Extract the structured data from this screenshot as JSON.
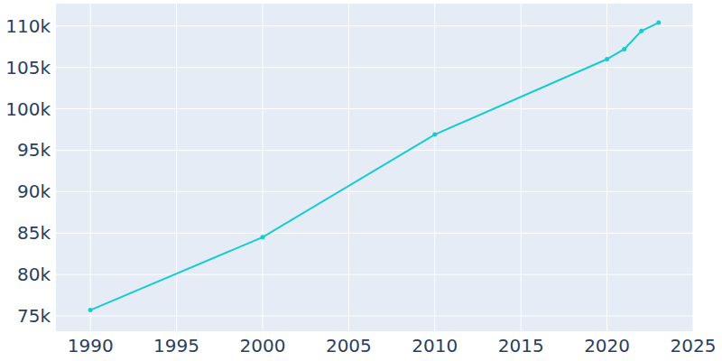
{
  "chart_data": {
    "type": "line",
    "x": [
      1990,
      2000,
      2010,
      2020,
      2021,
      2022,
      2023
    ],
    "values": [
      75700,
      84500,
      96900,
      106000,
      107200,
      109400,
      110400
    ],
    "color": "#17cccc",
    "marker": "circle",
    "xlim": [
      1988,
      2025
    ],
    "xticks": [
      1990,
      1995,
      2000,
      2005,
      2010,
      2015,
      2020,
      2025
    ],
    "ylim": [
      73150,
      112700
    ],
    "yticks": [
      {
        "value": 75000,
        "label": "75k"
      },
      {
        "value": 80000,
        "label": "80k"
      },
      {
        "value": 85000,
        "label": "85k"
      },
      {
        "value": 90000,
        "label": "90k"
      },
      {
        "value": 95000,
        "label": "95k"
      },
      {
        "value": 100000,
        "label": "100k"
      },
      {
        "value": 105000,
        "label": "105k"
      },
      {
        "value": 110000,
        "label": "110k"
      }
    ],
    "grid": true
  }
}
